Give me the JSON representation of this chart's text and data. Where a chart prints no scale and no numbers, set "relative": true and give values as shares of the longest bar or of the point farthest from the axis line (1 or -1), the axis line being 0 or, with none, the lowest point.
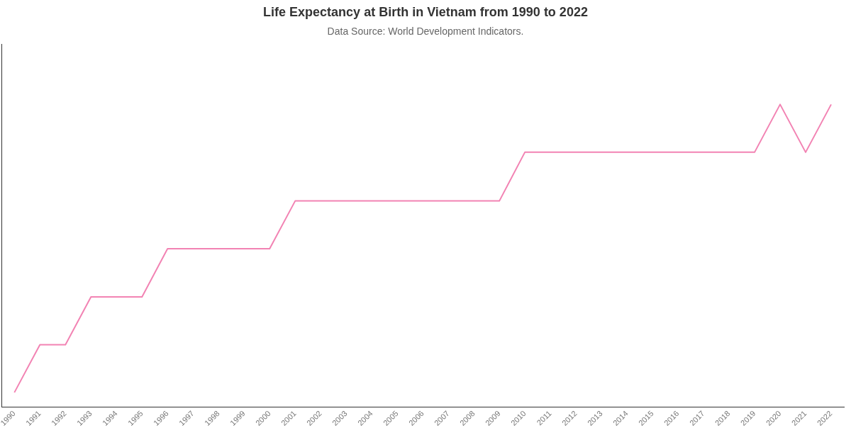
{
  "chart_data": {
    "type": "line",
    "title": "Life Expectancy at Birth in Vietnam from 1990 to 2022",
    "subtitle": "Data Source: World Development Indicators.",
    "relative": true,
    "categories": [
      "1990",
      "1991",
      "1992",
      "1993",
      "1994",
      "1995",
      "1996",
      "1997",
      "1998",
      "1999",
      "2000",
      "2001",
      "2002",
      "2003",
      "2004",
      "2005",
      "2006",
      "2007",
      "2008",
      "2009",
      "2010",
      "2011",
      "2012",
      "2013",
      "2014",
      "2015",
      "2016",
      "2017",
      "2018",
      "2019",
      "2020",
      "2021",
      "2022"
    ],
    "series": [
      {
        "color": "#f283b3",
        "values": [
          0.048,
          0.206,
          0.206,
          0.364,
          0.364,
          0.364,
          0.523,
          0.523,
          0.523,
          0.523,
          0.523,
          0.681,
          0.681,
          0.681,
          0.681,
          0.681,
          0.681,
          0.681,
          0.681,
          0.681,
          0.842,
          0.842,
          0.842,
          0.842,
          0.842,
          0.842,
          0.842,
          0.842,
          0.842,
          0.842,
          1,
          0.842,
          1
        ]
      }
    ],
    "grid": false,
    "legend": false,
    "marker": "none"
  }
}
